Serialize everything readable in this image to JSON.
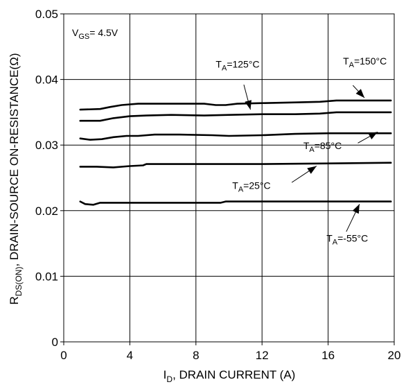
{
  "chart_data": {
    "type": "line",
    "xlabel": {
      "main": "I",
      "sub": "D",
      "rest": ", DRAIN CURRENT (A)"
    },
    "ylabel": {
      "main": "R",
      "sub": "DS(ON)",
      "rest": ", DRAIN-SOURCE ON-RESISTANCE(Ω)"
    },
    "xlim": [
      0,
      20
    ],
    "ylim": [
      0,
      0.05
    ],
    "xticks": [
      "0",
      "4",
      "8",
      "12",
      "16",
      "20"
    ],
    "yticks": [
      "0",
      "0.01",
      "0.02",
      "0.03",
      "0.04",
      "0.05"
    ],
    "grid": true,
    "condition": {
      "main": "V",
      "sub": "GS",
      "rest": "= 4.5V"
    },
    "series": [
      {
        "name": {
          "main": "T",
          "sub": "A",
          "rest": "=150°C"
        },
        "x": [
          1,
          2.2,
          2.8,
          3.5,
          4.5,
          6,
          8.5,
          9.2,
          9.8,
          10.5,
          12,
          14,
          15.5,
          16.5,
          18,
          19.8
        ],
        "y": [
          0.0354,
          0.0355,
          0.0358,
          0.0361,
          0.0363,
          0.0363,
          0.0363,
          0.0361,
          0.0361,
          0.0363,
          0.0364,
          0.0365,
          0.0366,
          0.0368,
          0.0368,
          0.0368
        ]
      },
      {
        "name": {
          "main": "T",
          "sub": "A",
          "rest": "=125°C"
        },
        "x": [
          1,
          2.2,
          3,
          4,
          5,
          6.5,
          8.5,
          10,
          12,
          14,
          15.5,
          16.5,
          18,
          19.8
        ],
        "y": [
          0.0337,
          0.0337,
          0.0341,
          0.0344,
          0.0345,
          0.0346,
          0.0345,
          0.0346,
          0.0347,
          0.0347,
          0.0348,
          0.035,
          0.035,
          0.035
        ]
      },
      {
        "name": {
          "main": "T",
          "sub": "A",
          "rest": "=85°C"
        },
        "x": [
          1,
          1.6,
          2.3,
          3,
          3.8,
          4.5,
          5.5,
          7,
          9,
          10,
          12,
          14,
          16,
          18,
          19.8
        ],
        "y": [
          0.031,
          0.0308,
          0.0309,
          0.0312,
          0.0314,
          0.0314,
          0.0316,
          0.0316,
          0.0315,
          0.0314,
          0.0315,
          0.0317,
          0.0318,
          0.0318,
          0.0318
        ]
      },
      {
        "name": {
          "main": "T",
          "sub": "A",
          "rest": "=25°C"
        },
        "x": [
          1,
          2,
          3,
          4,
          4.8,
          5,
          8,
          12,
          16,
          19.8
        ],
        "y": [
          0.0267,
          0.0267,
          0.0266,
          0.0268,
          0.0269,
          0.0271,
          0.0271,
          0.0271,
          0.0272,
          0.0273
        ]
      },
      {
        "name": {
          "main": "T",
          "sub": "A",
          "rest": "=-55°C"
        },
        "x": [
          1,
          1.3,
          1.8,
          2.2,
          2.5,
          6,
          9.5,
          9.8,
          10.5,
          14,
          19.8
        ],
        "y": [
          0.0214,
          0.021,
          0.0209,
          0.0212,
          0.0212,
          0.0212,
          0.0212,
          0.0214,
          0.0214,
          0.0214,
          0.0214
        ]
      }
    ],
    "annotations": [
      {
        "series": 0,
        "text_at": [
          16.9,
          0.0423
        ],
        "arrow_from": [
          17.5,
          0.0391
        ],
        "arrow_to": [
          18.2,
          0.0372
        ]
      },
      {
        "series": 1,
        "text_at": [
          9.2,
          0.0418
        ],
        "arrow_from": [
          10.9,
          0.0392
        ],
        "arrow_to": [
          11.3,
          0.0354
        ]
      },
      {
        "series": 2,
        "text_at": [
          14.5,
          0.0294
        ],
        "arrow_from": [
          17.8,
          0.0303
        ],
        "arrow_to": [
          19.0,
          0.032
        ]
      },
      {
        "series": 3,
        "text_at": [
          10.2,
          0.0233
        ],
        "arrow_from": [
          13.8,
          0.0243
        ],
        "arrow_to": [
          15.3,
          0.0268
        ]
      },
      {
        "series": 4,
        "text_at": [
          15.9,
          0.0153
        ],
        "arrow_from": [
          17.1,
          0.0168
        ],
        "arrow_to": [
          17.9,
          0.021
        ]
      }
    ]
  }
}
